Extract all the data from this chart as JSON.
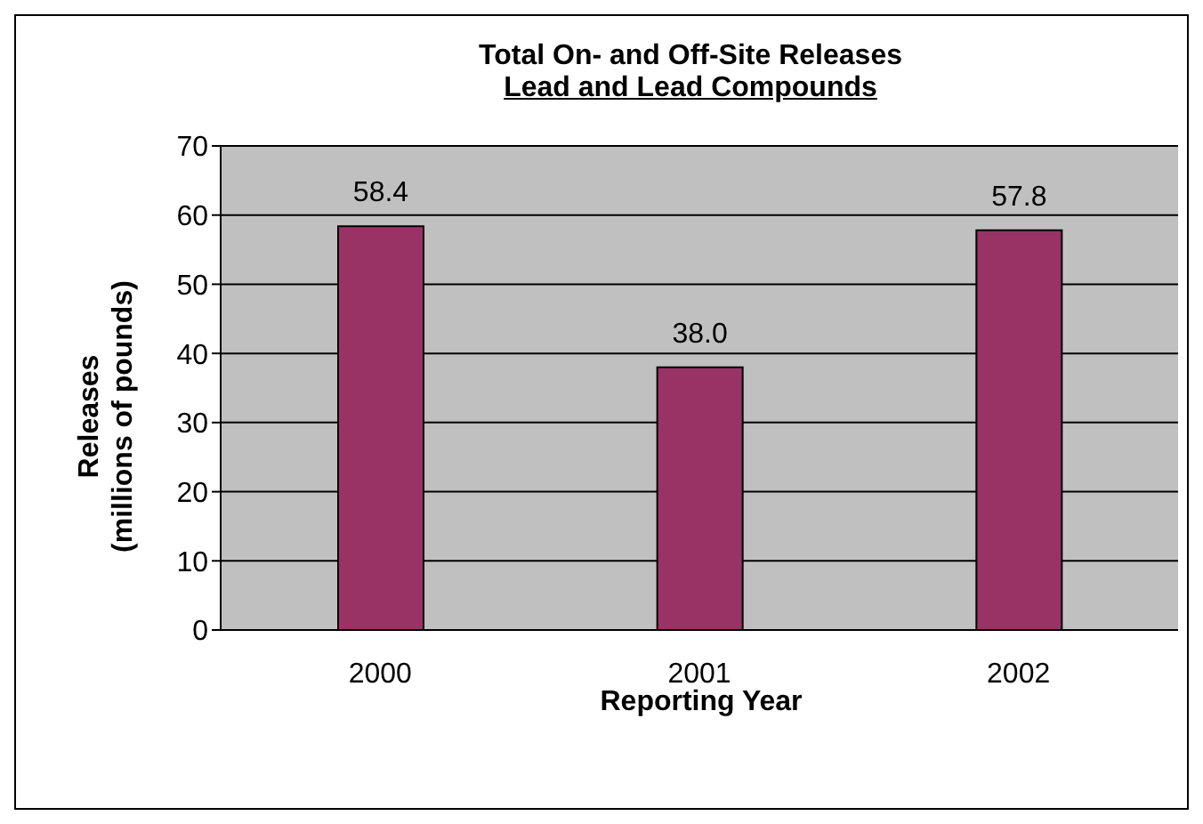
{
  "chart_data": {
    "type": "bar",
    "title": "Total On- and Off-Site Releases",
    "subtitle": "Lead and Lead Compounds",
    "xlabel": "Reporting Year",
    "ylabel": "Releases\n(millions of pounds)",
    "categories": [
      "2000",
      "2001",
      "2002"
    ],
    "series": [
      {
        "color": "#993366",
        "values": [
          58.4,
          38.0,
          57.8
        ],
        "value_labels": [
          "58.4",
          "38.0",
          "57.8"
        ]
      }
    ],
    "ylim": [
      0,
      70
    ],
    "yticks": [
      0,
      10,
      20,
      30,
      40,
      50,
      60,
      70
    ],
    "grid": "y",
    "legend": false
  }
}
